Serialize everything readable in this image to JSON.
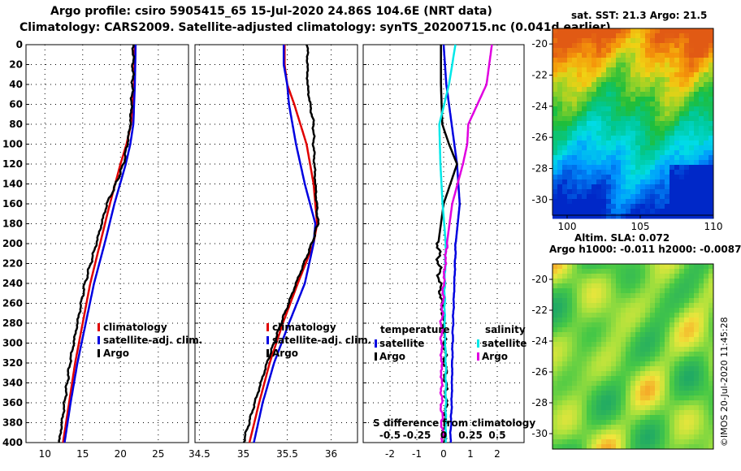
{
  "header": {
    "title_line1": "Argo profile: csiro 5905415_65 15-Jul-2020 24.86S 104.6E (NRT data)",
    "title_line2": "Climatology: CARS2009. Satellite-adjusted climatology: synTS_20200715.nc (0.041d earlier)"
  },
  "colors": {
    "climatology": "#e00000",
    "satellite": "#0000e0",
    "argo": "#000000",
    "sat_salinity": "#00e8e8",
    "argo_salinity": "#e000e0"
  },
  "chart_data": [
    {
      "type": "line",
      "panel": "temperature",
      "y_ticks": [
        0,
        20,
        40,
        60,
        80,
        100,
        120,
        140,
        160,
        180,
        200,
        220,
        240,
        260,
        280,
        300,
        320,
        340,
        360,
        380,
        400
      ],
      "x_ticks": [
        "10",
        "15",
        "20",
        "25"
      ],
      "xlim": [
        7.5,
        29
      ],
      "ylim": [
        400,
        0
      ],
      "legend": [
        "climatology",
        "satellite-adj. clim.",
        "Argo"
      ],
      "series": [
        {
          "name": "climatology",
          "depth": [
            0,
            40,
            80,
            100,
            120,
            160,
            200,
            240,
            280,
            320,
            360,
            400
          ],
          "values": [
            21.9,
            21.8,
            21.4,
            20.8,
            20.0,
            18.6,
            17.3,
            16.0,
            15.0,
            14.0,
            13.2,
            12.4
          ]
        },
        {
          "name": "satellite-adj. clim.",
          "depth": [
            0,
            40,
            80,
            100,
            120,
            160,
            200,
            240,
            280,
            320,
            360,
            400
          ],
          "values": [
            22.0,
            21.9,
            21.7,
            21.3,
            20.7,
            19.2,
            17.9,
            16.5,
            15.4,
            14.3,
            13.4,
            12.6
          ]
        },
        {
          "name": "Argo",
          "depth": [
            0,
            40,
            80,
            100,
            120,
            140,
            160,
            200,
            240,
            280,
            320,
            360,
            400
          ],
          "values": [
            21.7,
            21.6,
            21.3,
            20.9,
            20.4,
            19.4,
            18.2,
            16.8,
            15.3,
            14.3,
            13.3,
            12.6,
            11.9
          ]
        }
      ]
    },
    {
      "type": "line",
      "panel": "salinity",
      "x_ticks": [
        "34.5",
        "35",
        "35.5",
        "36"
      ],
      "xlim": [
        34.45,
        36.3
      ],
      "ylim": [
        400,
        0
      ],
      "legend": [
        "climatology",
        "satellite-adj. clim.",
        "Argo"
      ],
      "series": [
        {
          "name": "climatology",
          "depth": [
            0,
            20,
            40,
            60,
            80,
            100,
            140,
            180,
            200,
            240,
            280,
            320,
            360,
            400
          ],
          "values": [
            35.47,
            35.47,
            35.5,
            35.58,
            35.65,
            35.72,
            35.8,
            35.84,
            35.8,
            35.62,
            35.45,
            35.3,
            35.18,
            35.07
          ]
        },
        {
          "name": "satellite-adj. clim.",
          "depth": [
            0,
            20,
            40,
            60,
            80,
            100,
            140,
            180,
            200,
            240,
            280,
            320,
            360,
            400
          ],
          "values": [
            35.46,
            35.46,
            35.5,
            35.52,
            35.56,
            35.6,
            35.7,
            35.82,
            35.8,
            35.7,
            35.52,
            35.35,
            35.22,
            35.12
          ]
        },
        {
          "name": "Argo",
          "depth": [
            0,
            20,
            40,
            60,
            80,
            100,
            140,
            180,
            200,
            240,
            280,
            320,
            360,
            400
          ],
          "values": [
            35.73,
            35.73,
            35.73,
            35.76,
            35.8,
            35.8,
            35.82,
            35.85,
            35.78,
            35.6,
            35.43,
            35.27,
            35.13,
            35.0
          ]
        }
      ]
    },
    {
      "type": "line",
      "panel": "difference_from_climatology",
      "x_ticks": [
        "-2",
        "-1",
        "0",
        "1",
        "2"
      ],
      "xlim": [
        -3,
        3
      ],
      "ylim": [
        400,
        0
      ],
      "xlabel": "S difference from climatology",
      "x2_ticks": [
        "-0.5",
        "-0.25",
        "0",
        "0.25",
        "0.5"
      ],
      "legend_temperature_title": "temperature",
      "legend_salinity_title": "salinity",
      "legend": [
        "satellite",
        "Argo",
        "satellite",
        "Argo"
      ],
      "series": [
        {
          "name": "temperature satellite",
          "depth": [
            0,
            40,
            80,
            120,
            160,
            200,
            240,
            280,
            320,
            360,
            400
          ],
          "values": [
            0.0,
            0.1,
            0.3,
            0.5,
            0.6,
            0.45,
            0.4,
            0.35,
            0.32,
            0.3,
            0.25
          ]
        },
        {
          "name": "temperature Argo",
          "depth": [
            0,
            40,
            80,
            100,
            120,
            160,
            200,
            240,
            280,
            320,
            360,
            400
          ],
          "values": [
            -0.1,
            -0.1,
            -0.05,
            0.2,
            0.5,
            0.0,
            -0.2,
            -0.15,
            0.0,
            0.05,
            0.1,
            0.0
          ]
        },
        {
          "name": "salinity satellite",
          "depth": [
            0,
            40,
            80,
            120,
            160,
            200,
            240,
            280,
            320,
            360,
            400
          ],
          "values": [
            0.11,
            0.05,
            -0.04,
            -0.03,
            -0.01,
            0.02,
            0.01,
            0.01,
            0.02,
            0.02,
            0.02
          ]
        },
        {
          "name": "salinity Argo",
          "depth": [
            0,
            40,
            80,
            100,
            120,
            160,
            200,
            240,
            280,
            320,
            360,
            400
          ],
          "values": [
            0.45,
            0.4,
            0.23,
            0.22,
            0.18,
            0.08,
            0.03,
            0.0,
            -0.02,
            -0.02,
            -0.02,
            -0.01
          ]
        }
      ]
    },
    {
      "type": "heatmap",
      "panel": "sst",
      "title": "sat. SST: 21.3  Argo: 21.5",
      "x_ticks": [
        "100",
        "105",
        "110"
      ],
      "y_ticks": [
        "-20",
        "-22",
        "-24",
        "-26",
        "-28",
        "-30"
      ],
      "xlim": [
        99,
        110
      ],
      "ylim": [
        -31,
        -19
      ]
    },
    {
      "type": "heatmap",
      "panel": "sla",
      "title_line1": "Altim. SLA: 0.072",
      "title_line2": "Argo h1000: -0.011 h2000: -0.0087",
      "y_ticks": [
        "-20",
        "-22",
        "-24",
        "-26",
        "-28",
        "-30"
      ],
      "ylim": [
        -31,
        -19
      ]
    }
  ],
  "footer": {
    "credit": "©IMOS 20-Jul-2020 11:45:28"
  }
}
